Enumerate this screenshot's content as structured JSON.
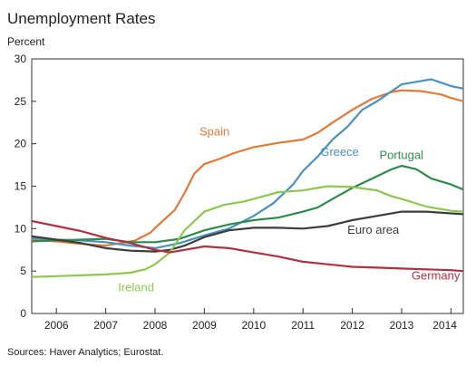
{
  "chart_data": {
    "type": "line",
    "title": "Unemployment Rates",
    "ylabel": "Percent",
    "source": "Sources: Haver Analytics; Eurostat.",
    "xlim": [
      2005.5,
      2014.25
    ],
    "ylim": [
      0,
      30
    ],
    "yticks": [
      0,
      5,
      10,
      15,
      20,
      25,
      30
    ],
    "xtick_labels": [
      {
        "label": "2006",
        "year": 2006
      },
      {
        "label": "2007",
        "year": 2007
      },
      {
        "label": "2008",
        "year": 2008
      },
      {
        "label": "2009",
        "year": 2009
      },
      {
        "label": "2010",
        "year": 2010
      },
      {
        "label": "2011",
        "year": 2011
      },
      {
        "label": "2012",
        "year": 2012
      },
      {
        "label": "2013",
        "year": 2013
      },
      {
        "label": "2014",
        "year": 2014
      }
    ],
    "grid": false,
    "series": [
      {
        "name": "Spain",
        "color": "#E07A36",
        "label_at": [
          2008.9,
          21
        ],
        "points": [
          [
            2005.5,
            8.7
          ],
          [
            2006.0,
            8.5
          ],
          [
            2006.5,
            8.2
          ],
          [
            2007.0,
            8.0
          ],
          [
            2007.3,
            8.3
          ],
          [
            2007.6,
            8.6
          ],
          [
            2007.9,
            9.5
          ],
          [
            2008.1,
            10.6
          ],
          [
            2008.4,
            12.2
          ],
          [
            2008.6,
            14.2
          ],
          [
            2008.8,
            16.5
          ],
          [
            2009.0,
            17.6
          ],
          [
            2009.3,
            18.2
          ],
          [
            2009.6,
            18.9
          ],
          [
            2010.0,
            19.6
          ],
          [
            2010.5,
            20.1
          ],
          [
            2011.0,
            20.5
          ],
          [
            2011.3,
            21.3
          ],
          [
            2011.6,
            22.5
          ],
          [
            2012.0,
            24.0
          ],
          [
            2012.4,
            25.3
          ],
          [
            2012.8,
            26.1
          ],
          [
            2013.0,
            26.3
          ],
          [
            2013.4,
            26.2
          ],
          [
            2013.8,
            25.8
          ],
          [
            2014.0,
            25.4
          ],
          [
            2014.25,
            25.0
          ]
        ]
      },
      {
        "name": "Greece",
        "color": "#4A90C0",
        "label_at": [
          2011.35,
          18.6
        ],
        "points": [
          [
            2005.5,
            8.9
          ],
          [
            2006.0,
            8.7
          ],
          [
            2006.5,
            8.6
          ],
          [
            2007.0,
            8.4
          ],
          [
            2007.5,
            8.0
          ],
          [
            2008.0,
            7.7
          ],
          [
            2008.5,
            8.3
          ],
          [
            2009.0,
            9.2
          ],
          [
            2009.5,
            10.0
          ],
          [
            2010.0,
            11.5
          ],
          [
            2010.4,
            13.0
          ],
          [
            2010.8,
            15.2
          ],
          [
            2011.0,
            16.8
          ],
          [
            2011.3,
            18.5
          ],
          [
            2011.6,
            20.5
          ],
          [
            2011.9,
            22.0
          ],
          [
            2012.2,
            24.0
          ],
          [
            2012.5,
            25.0
          ],
          [
            2012.8,
            26.2
          ],
          [
            2013.0,
            27.0
          ],
          [
            2013.3,
            27.3
          ],
          [
            2013.6,
            27.6
          ],
          [
            2013.8,
            27.2
          ],
          [
            2014.0,
            26.8
          ],
          [
            2014.25,
            26.5
          ]
        ]
      },
      {
        "name": "Portugal",
        "color": "#2E8B4E",
        "label_at": [
          2012.55,
          18.2
        ],
        "points": [
          [
            2005.5,
            8.5
          ],
          [
            2006.0,
            8.6
          ],
          [
            2006.5,
            8.7
          ],
          [
            2007.0,
            8.8
          ],
          [
            2007.5,
            8.4
          ],
          [
            2008.0,
            8.4
          ],
          [
            2008.5,
            8.8
          ],
          [
            2009.0,
            9.8
          ],
          [
            2009.5,
            10.5
          ],
          [
            2010.0,
            11.0
          ],
          [
            2010.5,
            11.3
          ],
          [
            2011.0,
            12.0
          ],
          [
            2011.3,
            12.5
          ],
          [
            2011.6,
            13.5
          ],
          [
            2012.0,
            14.8
          ],
          [
            2012.4,
            15.9
          ],
          [
            2012.8,
            17.0
          ],
          [
            2013.0,
            17.4
          ],
          [
            2013.3,
            17.0
          ],
          [
            2013.6,
            15.9
          ],
          [
            2014.0,
            15.2
          ],
          [
            2014.25,
            14.6
          ]
        ]
      },
      {
        "name": "Euro area",
        "color": "#3C3C3C",
        "label_at": [
          2011.9,
          9.4
        ],
        "points": [
          [
            2005.5,
            9.1
          ],
          [
            2006.0,
            8.7
          ],
          [
            2006.5,
            8.3
          ],
          [
            2007.0,
            7.7
          ],
          [
            2007.5,
            7.4
          ],
          [
            2008.0,
            7.3
          ],
          [
            2008.3,
            7.5
          ],
          [
            2008.6,
            8.0
          ],
          [
            2009.0,
            9.0
          ],
          [
            2009.5,
            9.8
          ],
          [
            2010.0,
            10.1
          ],
          [
            2010.5,
            10.1
          ],
          [
            2011.0,
            10.0
          ],
          [
            2011.5,
            10.3
          ],
          [
            2012.0,
            11.0
          ],
          [
            2012.5,
            11.5
          ],
          [
            2013.0,
            12.0
          ],
          [
            2013.5,
            12.0
          ],
          [
            2014.0,
            11.8
          ],
          [
            2014.25,
            11.7
          ]
        ]
      },
      {
        "name": "Ireland",
        "color": "#8CC850",
        "label_at": [
          2007.25,
          2.6
        ],
        "points": [
          [
            2005.5,
            4.3
          ],
          [
            2006.0,
            4.4
          ],
          [
            2006.5,
            4.5
          ],
          [
            2007.0,
            4.6
          ],
          [
            2007.5,
            4.8
          ],
          [
            2007.8,
            5.2
          ],
          [
            2008.0,
            5.8
          ],
          [
            2008.3,
            7.2
          ],
          [
            2008.6,
            9.8
          ],
          [
            2009.0,
            12.0
          ],
          [
            2009.4,
            12.8
          ],
          [
            2009.8,
            13.2
          ],
          [
            2010.0,
            13.5
          ],
          [
            2010.5,
            14.3
          ],
          [
            2011.0,
            14.5
          ],
          [
            2011.5,
            15.0
          ],
          [
            2012.0,
            14.9
          ],
          [
            2012.5,
            14.5
          ],
          [
            2012.8,
            13.8
          ],
          [
            2013.0,
            13.5
          ],
          [
            2013.5,
            12.6
          ],
          [
            2014.0,
            12.1
          ],
          [
            2014.25,
            12.0
          ]
        ]
      },
      {
        "name": "Germany",
        "color": "#B03040",
        "label_at": [
          2013.2,
          4.0
        ],
        "points": [
          [
            2005.5,
            10.9
          ],
          [
            2006.0,
            10.3
          ],
          [
            2006.5,
            9.7
          ],
          [
            2007.0,
            8.9
          ],
          [
            2007.5,
            8.3
          ],
          [
            2008.0,
            7.5
          ],
          [
            2008.3,
            7.2
          ],
          [
            2008.6,
            7.5
          ],
          [
            2009.0,
            7.9
          ],
          [
            2009.5,
            7.7
          ],
          [
            2010.0,
            7.2
          ],
          [
            2010.5,
            6.7
          ],
          [
            2011.0,
            6.1
          ],
          [
            2011.5,
            5.8
          ],
          [
            2012.0,
            5.5
          ],
          [
            2012.5,
            5.4
          ],
          [
            2013.0,
            5.3
          ],
          [
            2013.5,
            5.2
          ],
          [
            2014.0,
            5.1
          ],
          [
            2014.25,
            5.0
          ]
        ]
      }
    ]
  }
}
